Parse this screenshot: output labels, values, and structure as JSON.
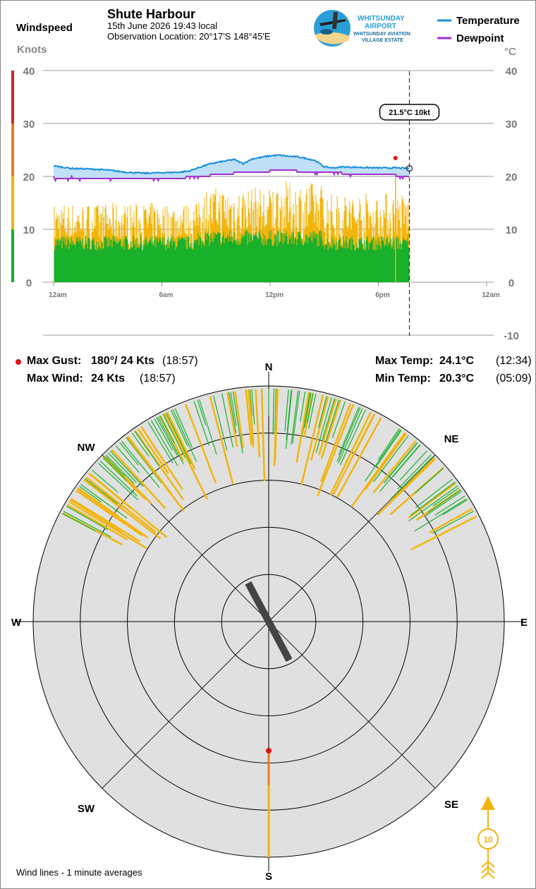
{
  "header": {
    "station": "Shute Harbour",
    "date_time": "15th June 2026  19:43 local",
    "location": "Observation Location: 20°17'S 148°45'E"
  },
  "logo": {
    "line1": "WHITSUNDAY",
    "line2": "AIRPORT",
    "line3": "WHITSUNDAY AVIATION",
    "line4": "VILLAGE ESTATE"
  },
  "colors": {
    "temperature": "#1a8fdc",
    "dewpoint": "#a22fd2",
    "wind_low": "#19b02b",
    "wind_mid": "#f2b50c",
    "wind_high": "#ec7d23",
    "wind_max": "#d92020",
    "gust_marker": "#dd1111",
    "compass_bg": "#e0e0e0"
  },
  "chart_data": [
    {
      "type": "line",
      "left_axis_title": "Windspeed",
      "left_axis_unit": "Knots",
      "right_axis_unit": "°C",
      "left_ticks": [
        "40",
        "30",
        "20",
        "10",
        "0"
      ],
      "right_ticks": [
        "40",
        "30",
        "20",
        "10",
        "0",
        "-10"
      ],
      "x_ticks": [
        "12am",
        "6am",
        "12pm",
        "6pm",
        "12am"
      ],
      "xlim_hours": [
        0,
        24
      ],
      "ylim_knots": [
        0,
        40
      ],
      "ylim_celsius": [
        -10,
        40
      ],
      "now_hour": 19.72,
      "legend": [
        "Temperature",
        "Dewpoint"
      ],
      "legend_position": "top-right",
      "series": [
        {
          "name": "Temperature",
          "hours": [
            0,
            1,
            2,
            3,
            4,
            5,
            6,
            7,
            7.5,
            8,
            8.5,
            9,
            9.5,
            10,
            10.5,
            11,
            11.5,
            12,
            12.5,
            13,
            13.5,
            14,
            14.5,
            15,
            15.5,
            16,
            17,
            18,
            19,
            19.72
          ],
          "values": [
            22.0,
            21.5,
            21.4,
            21.2,
            20.8,
            20.6,
            20.7,
            20.8,
            21.0,
            21.6,
            22.2,
            22.6,
            22.9,
            23.2,
            22.4,
            23.3,
            23.6,
            23.9,
            24.0,
            23.8,
            23.7,
            23.4,
            23.0,
            21.8,
            21.6,
            21.8,
            21.7,
            21.6,
            21.6,
            21.5
          ]
        },
        {
          "name": "Dewpoint",
          "hours": [
            0,
            0.5,
            1,
            2,
            3,
            4,
            5,
            6,
            7,
            8,
            9,
            10,
            11,
            12,
            13,
            14,
            15,
            16,
            17,
            18,
            19,
            19.72
          ],
          "values": [
            19.8,
            19.5,
            19.8,
            19.7,
            19.7,
            19.7,
            19.7,
            19.7,
            19.7,
            20.0,
            20.3,
            20.6,
            20.8,
            21.0,
            21.1,
            20.9,
            20.7,
            20.6,
            20.5,
            20.3,
            20.2,
            20.0
          ]
        }
      ],
      "wind_bars_knots": [
        {
          "hour_range": [
            0,
            8
          ],
          "mean": 8,
          "gust_peak": 15
        },
        {
          "hour_range": [
            8,
            12
          ],
          "mean": 9,
          "gust_peak": 18
        },
        {
          "hour_range": [
            12,
            15
          ],
          "mean": 9,
          "gust_peak": 19
        },
        {
          "hour_range": [
            15,
            19.72
          ],
          "mean": 8,
          "gust_peak": 17
        }
      ],
      "max_gust_marker": {
        "hour": 18.95,
        "knots": 24
      },
      "now_label": {
        "temp": "21.5°C",
        "wind": "10kt"
      }
    },
    {
      "type": "polar",
      "labels": [
        "N",
        "NE",
        "E",
        "SE",
        "S",
        "SW",
        "W",
        "NW"
      ],
      "ring_knots": [
        5,
        10,
        15,
        20,
        25
      ],
      "radius_max_knots": 25,
      "current_direction_deg": 152,
      "max_gust_direction_deg": 180,
      "max_gust_knots": 24,
      "direction_range_deg": [
        295,
        65
      ],
      "footnote": "Wind lines - 1 minute averages"
    }
  ],
  "stats": {
    "max_gust_label": "Max Gust:",
    "max_gust_value": "180°/ 24 Kts",
    "max_gust_time": "(18:57)",
    "max_wind_label": "Max Wind:",
    "max_wind_value": "24 Kts",
    "max_wind_time": "(18:57)",
    "max_temp_label": "Max Temp:",
    "max_temp_value": "24.1°C",
    "max_temp_time": "(12:34)",
    "min_temp_label": "Min Temp:",
    "min_temp_value": "20.3°C",
    "min_temp_time": "(05:09)"
  },
  "wind_arrow": {
    "speed": "10",
    "icon": "wind-direction-arrow-icon"
  }
}
